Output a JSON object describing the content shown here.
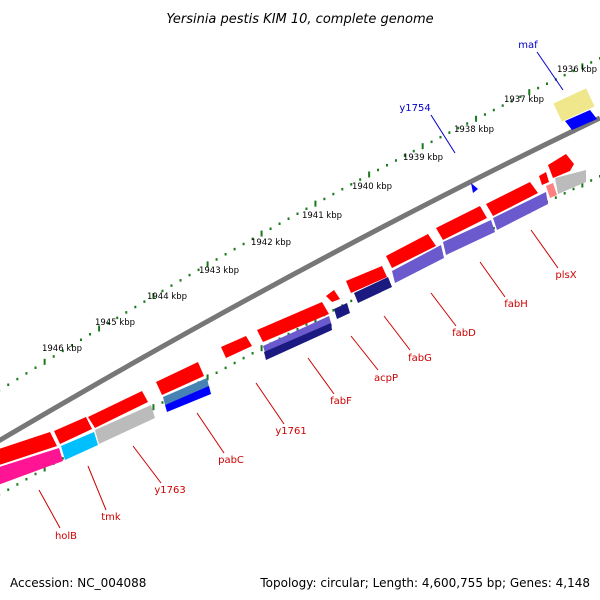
{
  "title": "Yersinia pestis KIM 10, complete genome",
  "footer": {
    "accession": "Accession: NC_004088",
    "topology": "Topology: circular; Length: 4,600,755 bp; Genes: 4,148"
  },
  "kbp_ticks": [
    "1936 kbp",
    "1937 kbp",
    "1938 kbp",
    "1939 kbp",
    "1940 kbp",
    "1941 kbp",
    "1942 kbp",
    "1943 kbp",
    "1944 kbp",
    "1945 kbp",
    "1946 kbp"
  ],
  "outer_labels": [
    "maf",
    "y1754"
  ],
  "inner_labels": [
    "plsX",
    "fabH",
    "fabD",
    "fabG",
    "acpP",
    "fabF",
    "y1761",
    "pabC",
    "y1763",
    "tmk",
    "holB"
  ],
  "colors": {
    "forward_gene": "#ff0000",
    "reverse_gene": "#ff0000",
    "tick": "#1a7a1a",
    "backbone": "#777777",
    "outer_label": "#0000cc",
    "inner_label": "#cc0000",
    "cog_purple": "#6a5acd",
    "cog_navy": "#1a1a80",
    "cog_blue": "#0000ff",
    "cog_yellow": "#f0e68c",
    "cog_magenta": "#ff1493",
    "cog_cyan": "#00bfff",
    "cog_gray": "#bbbbbb",
    "cog_pink": "#ff8080",
    "cog_teal": "#4682b4"
  }
}
